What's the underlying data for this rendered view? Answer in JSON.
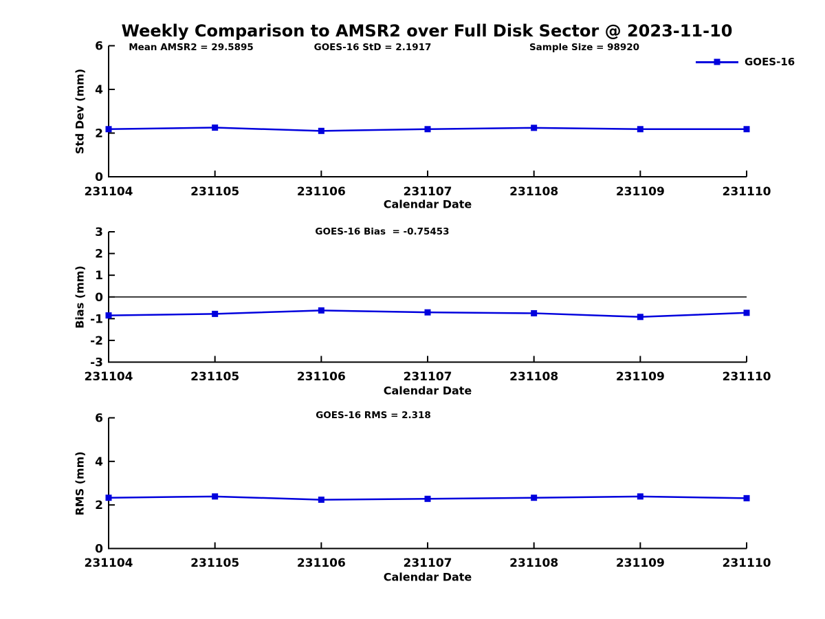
{
  "figure": {
    "title": "Weekly Comparison to AMSR2 over Full Disk Sector @ 2023-11-10"
  },
  "colors": {
    "series": "#0000dd",
    "axis": "#000000",
    "background": "#ffffff"
  },
  "legend": {
    "label": "GOES-16"
  },
  "chart_data": [
    {
      "type": "line",
      "title": "",
      "ylabel": "Std Dev (mm)",
      "xlabel": "Calendar Date",
      "categories": [
        "231104",
        "231105",
        "231106",
        "231107",
        "231108",
        "231109",
        "231110"
      ],
      "series": [
        {
          "name": "GOES-16",
          "color": "#0000dd",
          "marker": "square",
          "values": [
            2.18,
            2.25,
            2.1,
            2.18,
            2.24,
            2.18,
            2.18
          ]
        }
      ],
      "ylim": [
        0,
        6
      ],
      "yticks": [
        0,
        2,
        4,
        6
      ],
      "zero_line": false,
      "grid": false,
      "legend_position": "top-right",
      "annotations": [
        {
          "text": "Mean AMSR2 = 29.5895"
        },
        {
          "text": "GOES-16 StD = 2.1917"
        },
        {
          "text": "Sample Size = 98920"
        }
      ]
    },
    {
      "type": "line",
      "title": "",
      "ylabel": "Bias (mm)",
      "xlabel": "Calendar Date",
      "categories": [
        "231104",
        "231105",
        "231106",
        "231107",
        "231108",
        "231109",
        "231110"
      ],
      "series": [
        {
          "name": "GOES-16",
          "color": "#0000dd",
          "marker": "square",
          "values": [
            -0.85,
            -0.78,
            -0.62,
            -0.71,
            -0.75,
            -0.92,
            -0.73
          ]
        }
      ],
      "ylim": [
        -3,
        3
      ],
      "yticks": [
        -3,
        -2,
        -1,
        0,
        1,
        2,
        3
      ],
      "zero_line": true,
      "grid": false,
      "legend_position": "none",
      "annotations": [
        {
          "text": "GOES-16 Bias  = -0.75453"
        }
      ]
    },
    {
      "type": "line",
      "title": "",
      "ylabel": "RMS (mm)",
      "xlabel": "Calendar Date",
      "categories": [
        "231104",
        "231105",
        "231106",
        "231107",
        "231108",
        "231109",
        "231110"
      ],
      "series": [
        {
          "name": "GOES-16",
          "color": "#0000dd",
          "marker": "square",
          "values": [
            2.33,
            2.39,
            2.24,
            2.28,
            2.33,
            2.39,
            2.31
          ]
        }
      ],
      "ylim": [
        0,
        6
      ],
      "yticks": [
        0,
        2,
        4,
        6
      ],
      "zero_line": false,
      "grid": false,
      "legend_position": "none",
      "annotations": [
        {
          "text": "GOES-16 RMS = 2.318"
        }
      ]
    }
  ]
}
